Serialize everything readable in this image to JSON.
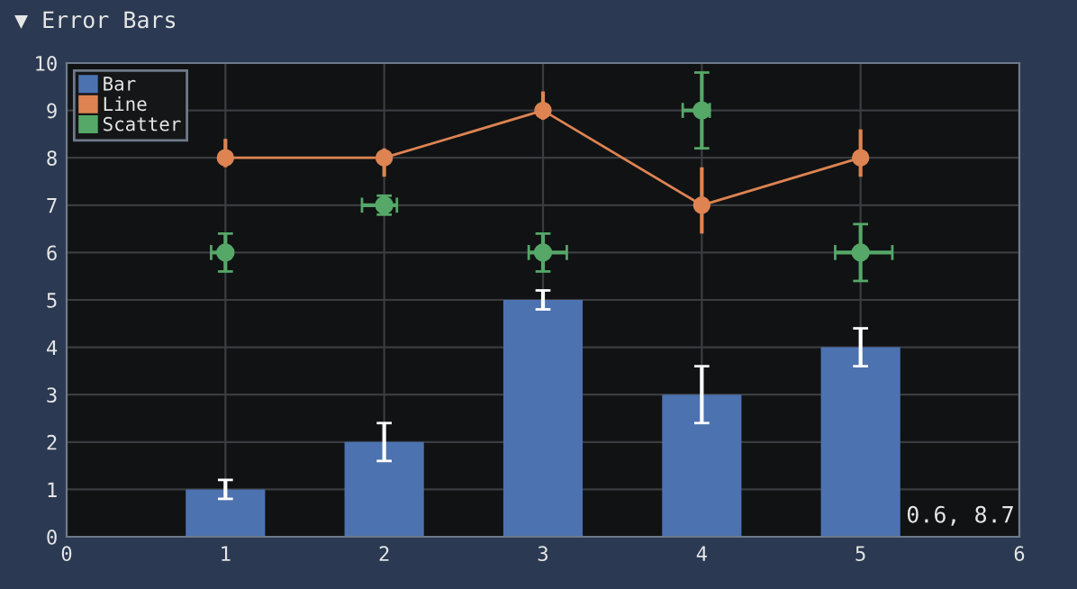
{
  "chart_data": {
    "type": "bar",
    "title": "▼ Error Bars",
    "x": [
      1,
      2,
      3,
      4,
      5
    ],
    "series": [
      {
        "name": "Bar",
        "color": "#4c72b0",
        "values": [
          1,
          2,
          5,
          3,
          4
        ],
        "errors": [
          0.2,
          0.4,
          0.2,
          0.6,
          0.4
        ]
      },
      {
        "name": "Line",
        "type": "line",
        "color": "#dd8452",
        "values": [
          8,
          8,
          9,
          7,
          8
        ],
        "errors": [
          [
            7.8,
            8.4
          ],
          [
            7.6,
            8.2
          ],
          [
            8.8,
            9.4
          ],
          [
            6.4,
            7.8
          ],
          [
            7.6,
            8.6
          ]
        ],
        "marker": "circle"
      },
      {
        "name": "Scatter",
        "type": "scatter",
        "color": "#55a868",
        "values": [
          6,
          7,
          6,
          9,
          6
        ],
        "errors": [
          0.4,
          0.2,
          0.4,
          0.8,
          0.6
        ],
        "xerrors": [
          [
            0.91,
            1.02
          ],
          [
            1.86,
            2.08
          ],
          [
            2.91,
            3.15
          ],
          [
            3.88,
            4.05
          ],
          [
            4.84,
            5.2
          ]
        ],
        "marker": "circle"
      }
    ],
    "xlim": [
      0,
      6
    ],
    "xticks": [
      0,
      1,
      2,
      3,
      4,
      5,
      6
    ],
    "ylim": [
      0,
      10
    ],
    "yticks": [
      0,
      1,
      2,
      3,
      4,
      5,
      6,
      7,
      8,
      9,
      10
    ],
    "grid": true,
    "legend": "top left",
    "annotations": [
      "0.6, 8.7"
    ]
  }
}
